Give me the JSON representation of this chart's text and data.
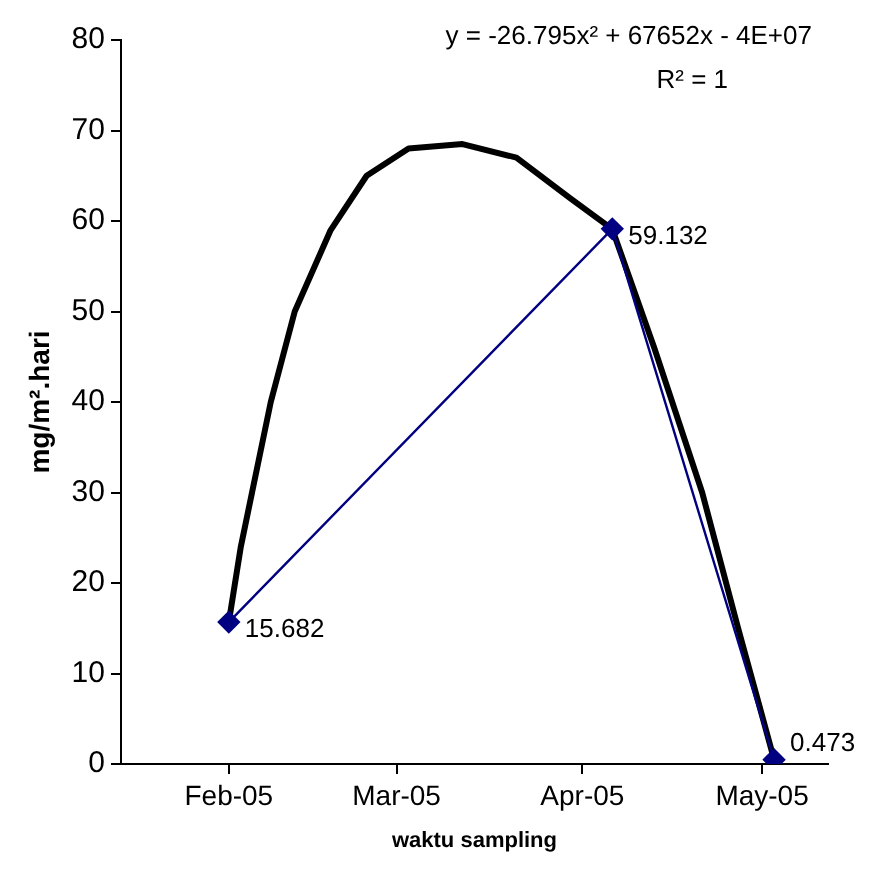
{
  "chart_data": {
    "type": "line",
    "xlabel": "waktu sampling",
    "ylabel": "mg/m².hari",
    "xlim": [
      "2005-01-14",
      "2005-05-12"
    ],
    "xticks": [
      {
        "value": "2005-02-01",
        "label": "Feb-05"
      },
      {
        "value": "2005-03-01",
        "label": "Mar-05"
      },
      {
        "value": "2005-04-01",
        "label": "Apr-05"
      },
      {
        "value": "2005-05-01",
        "label": "May-05"
      }
    ],
    "ylim": [
      0,
      80
    ],
    "yticks": [
      0,
      10,
      20,
      30,
      40,
      50,
      60,
      70,
      80
    ],
    "grid": false,
    "legend": false,
    "annotations": [
      "y = -26.795x² + 67652x - 4E+07",
      "R² = 1"
    ],
    "series": [
      {
        "color": "#000080",
        "marker": "diamond",
        "line_style": "solid",
        "x": [
          "2005-02-01",
          "2005-04-06",
          "2005-05-03"
        ],
        "values": [
          15.682,
          59.132,
          0.473
        ],
        "value_labels": [
          "15.682",
          "59.132",
          "0.473"
        ]
      },
      {
        "color": "#000000",
        "marker": "none",
        "line_style": "solid",
        "x": [
          "2005-02-01",
          "2005-02-03",
          "2005-02-08",
          "2005-02-12",
          "2005-02-18",
          "2005-02-24",
          "2005-03-03",
          "2005-03-12",
          "2005-03-21",
          "2005-03-30",
          "2005-04-06",
          "2005-04-13",
          "2005-04-21",
          "2005-04-27",
          "2005-05-03"
        ],
        "values": [
          15.7,
          24,
          40,
          50,
          59,
          65,
          68,
          68.5,
          67,
          62.5,
          59.1,
          46,
          30,
          15,
          0.5
        ]
      }
    ]
  }
}
